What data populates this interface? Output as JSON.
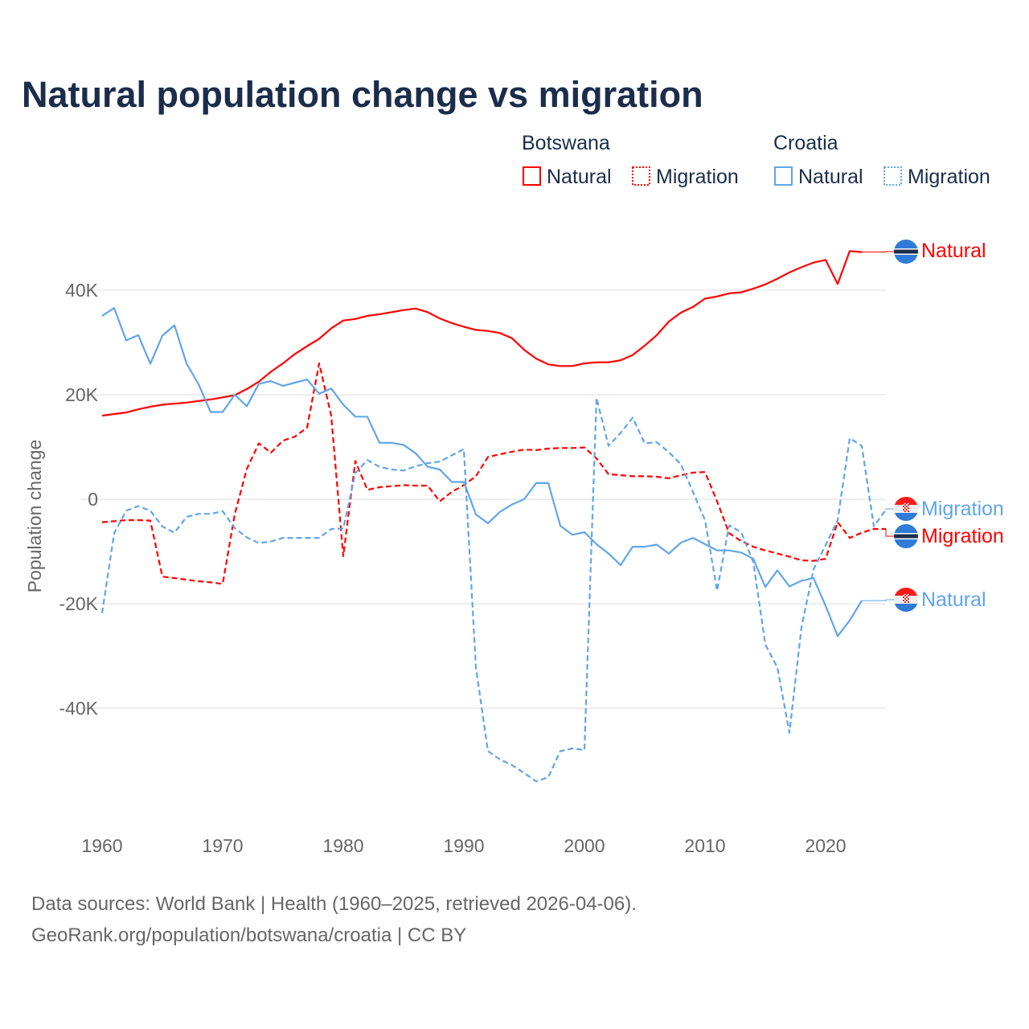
{
  "title": "Natural population change vs migration",
  "legend": {
    "groups": [
      {
        "name": "Botswana",
        "items": [
          "Natural",
          "Migration"
        ]
      },
      {
        "name": "Croatia",
        "items": [
          "Natural",
          "Migration"
        ]
      }
    ]
  },
  "end_labels": {
    "botswana_natural": "Natural",
    "croatia_migration": "Migration",
    "botswana_migration": "Migration",
    "croatia_natural": "Natural"
  },
  "footer": {
    "line1": "Data sources: World Bank | Health (1960–2025, retrieved 2026-04-06).",
    "line2": "GeoRank.org/population/botswana/croatia | CC BY"
  },
  "colors": {
    "botswana": "#ff0000",
    "croatia": "#60a5e8",
    "title": "#1b2d4b"
  },
  "chart_data": {
    "type": "line",
    "title": "Natural population change vs migration",
    "xlabel": "",
    "ylabel": "Population change",
    "xlim": [
      1960,
      2025
    ],
    "ylim": [
      -55000,
      50000
    ],
    "x_ticks": [
      1960,
      1970,
      1980,
      1990,
      2000,
      2010,
      2020
    ],
    "x_tick_labels": [
      "1960",
      "1970",
      "1980",
      "1990",
      "2000",
      "2010",
      "2020"
    ],
    "y_ticks": [
      40000,
      20000,
      0,
      -20000,
      -40000
    ],
    "y_tick_labels": [
      "40K",
      "20K",
      "0",
      "-20K",
      "-40K"
    ],
    "grid": true,
    "legend_position": "top-right",
    "series": [
      {
        "name": "Botswana Natural",
        "country": "Botswana",
        "kind": "Natural",
        "style": "solid",
        "color": "#ff0000",
        "start_year": 1960,
        "values_k": [
          16.0,
          16.3,
          16.6,
          17.2,
          17.7,
          18.1,
          18.3,
          18.5,
          18.8,
          19.1,
          19.5,
          19.9,
          21.1,
          22.5,
          24.4,
          26.0,
          27.8,
          29.3,
          30.7,
          32.7,
          34.2,
          34.5,
          35.1,
          35.4,
          35.8,
          36.2,
          36.5,
          35.8,
          34.6,
          33.7,
          33.0,
          32.4,
          32.2,
          31.8,
          30.8,
          28.6,
          26.9,
          25.8,
          25.5,
          25.5,
          26.0,
          26.2,
          26.2,
          26.6,
          27.6,
          29.4,
          31.4,
          34.0,
          35.7,
          36.8,
          38.4,
          38.8,
          39.4,
          39.6,
          40.3,
          41.1,
          42.2,
          43.4,
          44.4,
          45.3,
          45.8,
          41.2,
          47.5,
          47.3
        ]
      },
      {
        "name": "Botswana Migration",
        "country": "Botswana",
        "kind": "Migration",
        "style": "dashed",
        "color": "#ff0000",
        "start_year": 1960,
        "values_k": [
          -4.4,
          -4.2,
          -4.0,
          -4.0,
          -4.1,
          -14.8,
          -15.1,
          -15.4,
          -15.7,
          -15.9,
          -16.2,
          -2.9,
          5.8,
          10.7,
          8.9,
          11.2,
          12.0,
          13.7,
          26.0,
          16.0,
          -10.9,
          7.3,
          1.8,
          2.3,
          2.5,
          2.7,
          2.6,
          2.6,
          -0.4,
          1.4,
          2.7,
          4.4,
          8.1,
          8.6,
          9.1,
          9.5,
          9.4,
          9.7,
          9.8,
          9.8,
          9.9,
          7.8,
          4.8,
          4.6,
          4.4,
          4.4,
          4.3,
          4.0,
          4.6,
          5.1,
          5.2,
          -0.4,
          -6.5,
          -8.0,
          -9.1,
          -9.8,
          -10.4,
          -11.0,
          -11.7,
          -11.8,
          -11.4,
          -4.4,
          -7.4,
          -6.4,
          -5.7,
          -5.7
        ]
      },
      {
        "name": "Croatia Natural",
        "country": "Croatia",
        "kind": "Natural",
        "style": "solid",
        "color": "#60a5e8",
        "start_year": 1960,
        "values_k": [
          35.1,
          36.6,
          30.4,
          31.4,
          25.9,
          31.3,
          33.3,
          26.0,
          22.0,
          16.7,
          16.7,
          20.0,
          17.8,
          22.1,
          22.6,
          21.7,
          22.3,
          22.9,
          20.2,
          21.2,
          18.1,
          15.8,
          15.8,
          10.8,
          10.8,
          10.4,
          8.8,
          6.2,
          5.7,
          3.3,
          3.3,
          -2.9,
          -4.6,
          -2.4,
          -1.0,
          0.0,
          3.1,
          3.1,
          -5.1,
          -6.8,
          -6.3,
          -8.6,
          -10.4,
          -12.6,
          -9.1,
          -9.1,
          -8.7,
          -10.4,
          -8.3,
          -7.4,
          -8.6,
          -9.8,
          -9.8,
          -10.2,
          -11.4,
          -16.8,
          -13.6,
          -16.7,
          -15.6,
          -15.1,
          -20.4,
          -26.2,
          -23.2,
          -19.4
        ]
      },
      {
        "name": "Croatia Migration",
        "country": "Croatia",
        "kind": "Migration",
        "style": "dashed",
        "color": "#60a5e8",
        "start_year": 1960,
        "values_k": [
          -21.8,
          -6.5,
          -2.2,
          -1.3,
          -2.2,
          -5.2,
          -6.4,
          -3.4,
          -2.8,
          -2.8,
          -2.3,
          -5.5,
          -7.3,
          -8.4,
          -8.1,
          -7.4,
          -7.4,
          -7.4,
          -7.4,
          -5.7,
          -5.6,
          5.0,
          7.5,
          6.2,
          5.7,
          5.5,
          6.3,
          6.9,
          7.2,
          8.4,
          9.6,
          -32.2,
          -48.2,
          -49.8,
          -50.9,
          -52.4,
          -54.0,
          -53.2,
          -48.2,
          -47.7,
          -48.0,
          19.4,
          10.2,
          12.7,
          15.6,
          10.7,
          10.9,
          9.0,
          6.7,
          1.4,
          -4.0,
          -17.5,
          -5.0,
          -6.3,
          -12.0,
          -27.8,
          -32.2,
          -44.7,
          -24.5,
          -13.4,
          -8.8,
          -4.0,
          11.7,
          10.2,
          -5.2,
          -2.0
        ]
      }
    ]
  }
}
